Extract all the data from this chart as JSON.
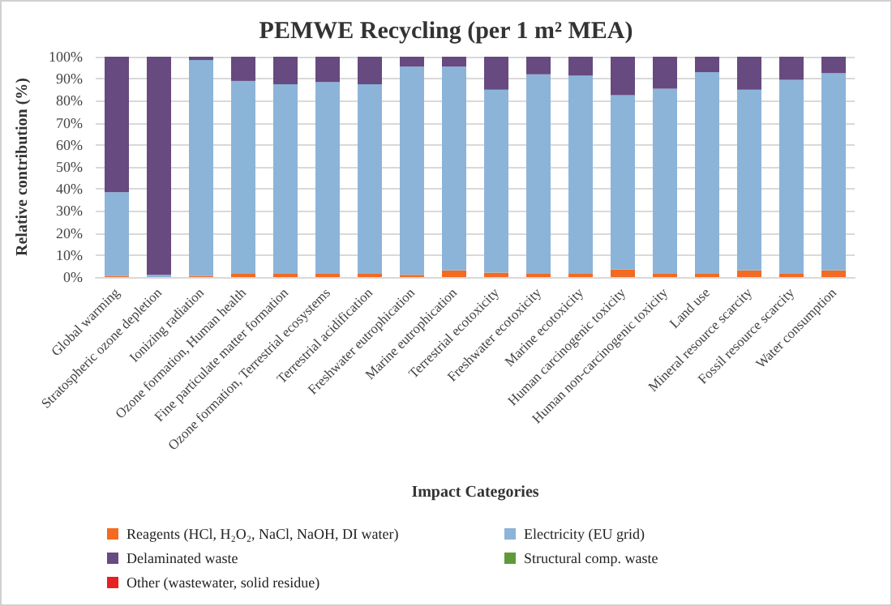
{
  "chart_data": {
    "type": "bar",
    "stacked": true,
    "title": "PEMWE Recycling (per 1 m² MEA)",
    "xlabel": "Impact Categories",
    "ylabel": "Relative contribution (%)",
    "categories": [
      "Global warming",
      "Stratospheric ozone depletion",
      "Ionizing radiation",
      "Ozone formation, Human health",
      "Fine particulate matter formation",
      "Ozone formation, Terrestrial ecosystems",
      "Terrestrial acidification",
      "Freshwater eutrophication",
      "Marine eutrophication",
      "Terrestrial ecotoxicity",
      "Freshwater ecotoxicity",
      "Marine ecotoxicity",
      "Human carcinogenic toxicity",
      "Human non-carcinogenic toxicity",
      "Land use",
      "Mineral resource scarcity",
      "Fossil resource scarcity",
      "Water consumption"
    ],
    "series": [
      {
        "name": "Reagents (HCl, H₂O₂, NaCl, NaOH, DI water)",
        "color": "#f26b21",
        "values": [
          0.5,
          0,
          0.5,
          1.5,
          1.5,
          1.5,
          1.5,
          1,
          3,
          2,
          1.5,
          1.5,
          3.5,
          1.5,
          1.5,
          3,
          1.5,
          3
        ]
      },
      {
        "name": "Electricity (EU grid)",
        "color": "#8cb4d9",
        "values": [
          38,
          1,
          98,
          87.5,
          86,
          87,
          86,
          94.5,
          92.5,
          83,
          90.5,
          90,
          79,
          84,
          91.5,
          82,
          88,
          89.5
        ]
      },
      {
        "name": "Delaminated waste",
        "color": "#674a80",
        "values": [
          61.5,
          99,
          1.5,
          11,
          12.5,
          11.5,
          12.5,
          4.5,
          4.5,
          15,
          8,
          8.5,
          17.5,
          14.5,
          7,
          15,
          10.5,
          7.5
        ]
      },
      {
        "name": "Structural comp. waste",
        "color": "#5f9a3a",
        "values": [
          0,
          0,
          0,
          0,
          0,
          0,
          0,
          0,
          0,
          0,
          0,
          0,
          0,
          0,
          0,
          0,
          0,
          0
        ]
      },
      {
        "name": "Other (wastewater, solid residue)",
        "color": "#e8201f",
        "values": [
          0,
          0,
          0,
          0,
          0,
          0,
          0,
          0,
          0,
          0,
          0,
          0,
          0,
          0,
          0,
          0,
          0,
          0
        ]
      }
    ],
    "ylim": [
      0,
      100
    ],
    "yticks": [
      {
        "value": 0,
        "label": "0%"
      },
      {
        "value": 10,
        "label": "10%"
      },
      {
        "value": 20,
        "label": "20%"
      },
      {
        "value": 30,
        "label": "30%"
      },
      {
        "value": 40,
        "label": "40%"
      },
      {
        "value": 50,
        "label": "50%"
      },
      {
        "value": 60,
        "label": "60%"
      },
      {
        "value": 70,
        "label": "70%"
      },
      {
        "value": 80,
        "label": "80%"
      },
      {
        "value": 90,
        "label": "90%"
      },
      {
        "value": 100,
        "label": "100%"
      }
    ],
    "grid": "y",
    "legend": "bottom"
  }
}
